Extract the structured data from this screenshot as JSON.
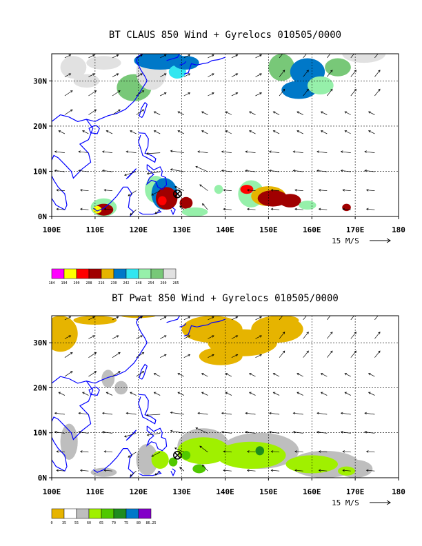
{
  "chart_data": [
    {
      "type": "heatmap",
      "title": "BT CLAUS 850 Wind + Gyrelocs 010505/0000",
      "xlabel": "",
      "ylabel": "",
      "x_ticks": [
        "100E",
        "110E",
        "120E",
        "130E",
        "140E",
        "150E",
        "160E",
        "170E",
        "180"
      ],
      "y_ticks": [
        "0N",
        "10N",
        "20N",
        "30N"
      ],
      "xlim": [
        100,
        180
      ],
      "ylim": [
        0,
        36
      ],
      "grid": true,
      "wind_reference": "15 M/S",
      "gyre_marker": {
        "lon": 129,
        "lat": 5
      },
      "colorbar": {
        "labels": [
          "184",
          "194",
          "200",
          "208",
          "216",
          "230",
          "242",
          "248",
          "254",
          "260",
          "265"
        ],
        "colors": [
          "#ff00ff",
          "#ffff00",
          "#ff0000",
          "#a00000",
          "#e6b400",
          "#0078c8",
          "#32e6f0",
          "#96f0aa",
          "#78c878",
          "#e1e1e1"
        ]
      }
    },
    {
      "type": "heatmap",
      "title": "BT Pwat 850 Wind + Gyrelocs 010505/0000",
      "xlabel": "",
      "ylabel": "",
      "x_ticks": [
        "100E",
        "110E",
        "120E",
        "130E",
        "140E",
        "150E",
        "160E",
        "170E",
        "180"
      ],
      "y_ticks": [
        "0N",
        "10N",
        "20N",
        "30N"
      ],
      "xlim": [
        100,
        180
      ],
      "ylim": [
        0,
        36
      ],
      "grid": true,
      "wind_reference": "15 M/S",
      "gyre_marker": {
        "lon": 129,
        "lat": 5
      },
      "colorbar": {
        "labels": [
          "0",
          "35",
          "55",
          "60",
          "65",
          "70",
          "75",
          "80",
          "86.25"
        ],
        "colors": [
          "#e6b400",
          "#ffffff",
          "#bebebe",
          "#a0f000",
          "#50c800",
          "#1e8c1e",
          "#0078c8",
          "#8200c8"
        ]
      }
    }
  ]
}
